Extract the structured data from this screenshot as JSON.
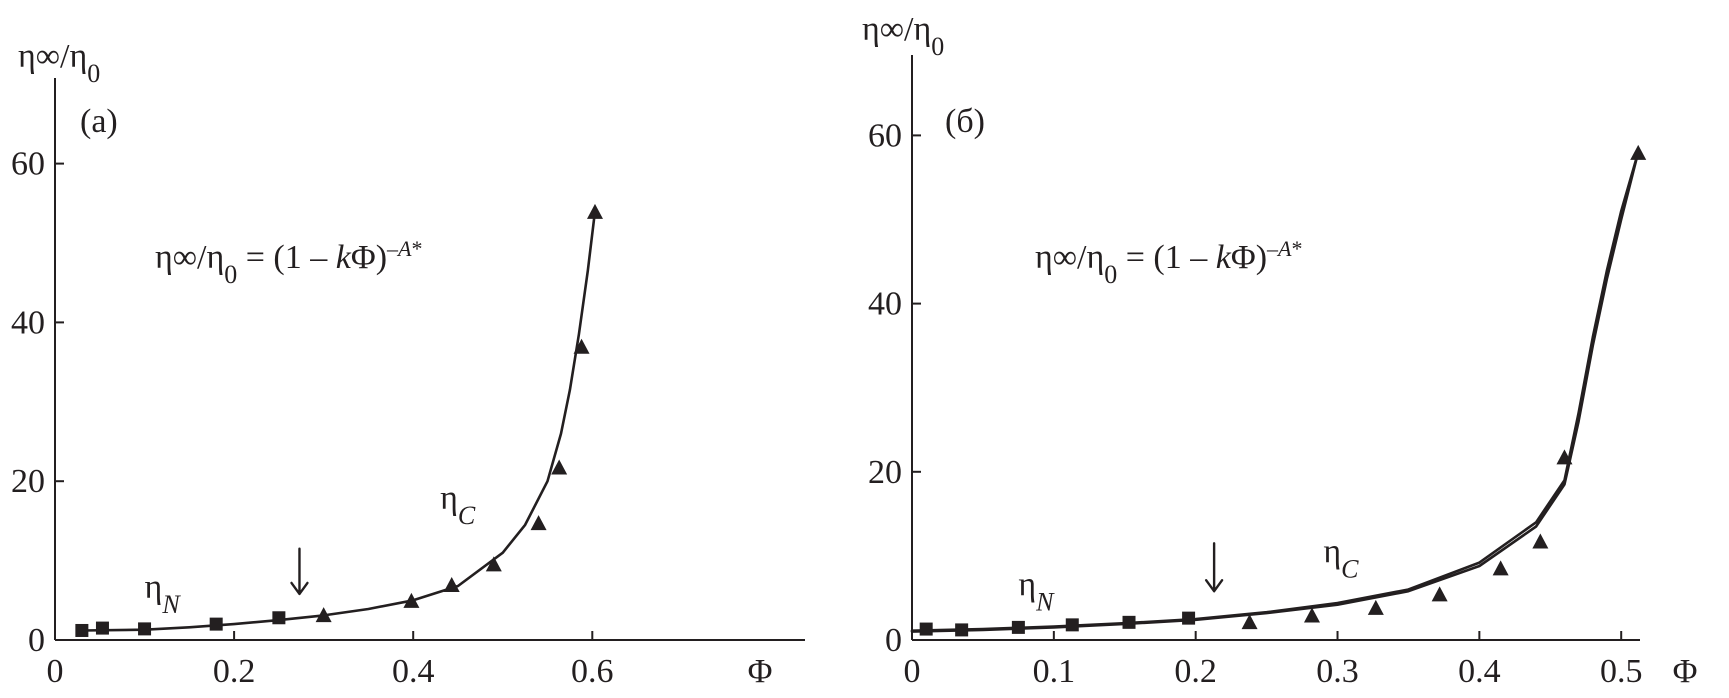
{
  "chart_data": [
    {
      "type": "scatter",
      "panel_label": "(a)",
      "ylabel": "η∞/η0",
      "xlabel": "Φ",
      "formula": "η∞/η0 = (1 – kΦ)–A*",
      "xlim": [
        0,
        0.7
      ],
      "ylim": [
        0,
        70
      ],
      "xticks": [
        0,
        0.2,
        0.4,
        0.6
      ],
      "xtick_labels": [
        "0",
        "0.2",
        "0.4",
        "0.6"
      ],
      "yticks": [
        0,
        20,
        40,
        60
      ],
      "ytick_labels": [
        "0",
        "20",
        "40",
        "60"
      ],
      "grid": false,
      "series": [
        {
          "name": "ηN",
          "marker": "square",
          "x": [
            0.03,
            0.053,
            0.1,
            0.18,
            0.25
          ],
          "y": [
            1.2,
            1.5,
            1.4,
            2.0,
            2.8
          ]
        },
        {
          "name": "ηC",
          "marker": "triangle",
          "x": [
            0.3,
            0.398,
            0.443,
            0.49,
            0.54,
            0.563,
            0.588,
            0.603
          ],
          "y": [
            3.0,
            4.8,
            6.8,
            9.4,
            14.6,
            21.6,
            36.8,
            53.8
          ]
        },
        {
          "name": "fit",
          "marker": "line",
          "x": [
            0.03,
            0.1,
            0.15,
            0.2,
            0.25,
            0.3,
            0.35,
            0.4,
            0.45,
            0.5,
            0.525,
            0.55,
            0.565,
            0.575,
            0.585,
            0.595,
            0.603
          ],
          "y": [
            1.2,
            1.3,
            1.6,
            2.0,
            2.5,
            3.1,
            3.9,
            5.0,
            6.8,
            11.0,
            14.5,
            20.0,
            26.0,
            31.5,
            38.5,
            46.5,
            54.0
          ]
        }
      ],
      "arrow_at_x": 0.273,
      "label_eta_n": {
        "main": "η",
        "sub": "N",
        "x": 0.1,
        "y": 5.3
      },
      "label_eta_c": {
        "main": "η",
        "sub": "C",
        "x": 0.43,
        "y": 16.5
      }
    },
    {
      "type": "scatter",
      "panel_label": "(б)",
      "ylabel": "η∞/η0",
      "xlabel": "Φ",
      "formula": "η∞/η0 = (1 – kΦ)–A*",
      "xlim": [
        0,
        0.55
      ],
      "ylim": [
        0,
        70
      ],
      "xticks": [
        0,
        0.1,
        0.2,
        0.3,
        0.4,
        0.5
      ],
      "xtick_labels": [
        "0",
        "0.1",
        "0.2",
        "0.3",
        "0.4",
        "0.5"
      ],
      "yticks": [
        0,
        20,
        40,
        60
      ],
      "ytick_labels": [
        "0",
        "20",
        "40",
        "60"
      ],
      "grid": false,
      "series": [
        {
          "name": "ηN",
          "marker": "square",
          "x": [
            0.01,
            0.035,
            0.075,
            0.113,
            0.153,
            0.195
          ],
          "y": [
            1.3,
            1.2,
            1.5,
            1.8,
            2.1,
            2.6
          ]
        },
        {
          "name": "ηC",
          "marker": "triangle",
          "x": [
            0.238,
            0.282,
            0.327,
            0.372,
            0.415,
            0.443,
            0.46,
            0.512
          ],
          "y": [
            2.0,
            2.8,
            3.7,
            5.3,
            8.4,
            11.6,
            21.6,
            57.8
          ]
        },
        {
          "name": "fit",
          "marker": "line",
          "x": [
            0.0,
            0.05,
            0.1,
            0.15,
            0.2,
            0.25,
            0.3,
            0.35,
            0.4,
            0.44,
            0.46,
            0.47,
            0.48,
            0.49,
            0.5,
            0.512
          ],
          "y": [
            1.0,
            1.2,
            1.5,
            1.9,
            2.4,
            3.2,
            4.2,
            5.8,
            8.8,
            13.5,
            18.5,
            26.0,
            35.0,
            43.0,
            50.0,
            58.0
          ]
        },
        {
          "name": "fit-2",
          "marker": "line",
          "x": [
            0.0,
            0.05,
            0.1,
            0.15,
            0.2,
            0.25,
            0.3,
            0.35,
            0.4,
            0.44,
            0.46,
            0.47,
            0.48,
            0.49,
            0.5,
            0.512
          ],
          "y": [
            1.1,
            1.3,
            1.6,
            2.0,
            2.5,
            3.3,
            4.4,
            6.0,
            9.2,
            14.0,
            19.0,
            27.0,
            36.0,
            44.0,
            51.0,
            58.0
          ]
        }
      ],
      "arrow_at_x": 0.213,
      "label_eta_n": {
        "main": "η",
        "sub": "N",
        "x": 0.075,
        "y": 5.3
      },
      "label_eta_c": {
        "main": "η",
        "sub": "C",
        "x": 0.29,
        "y": 9.2
      }
    }
  ]
}
